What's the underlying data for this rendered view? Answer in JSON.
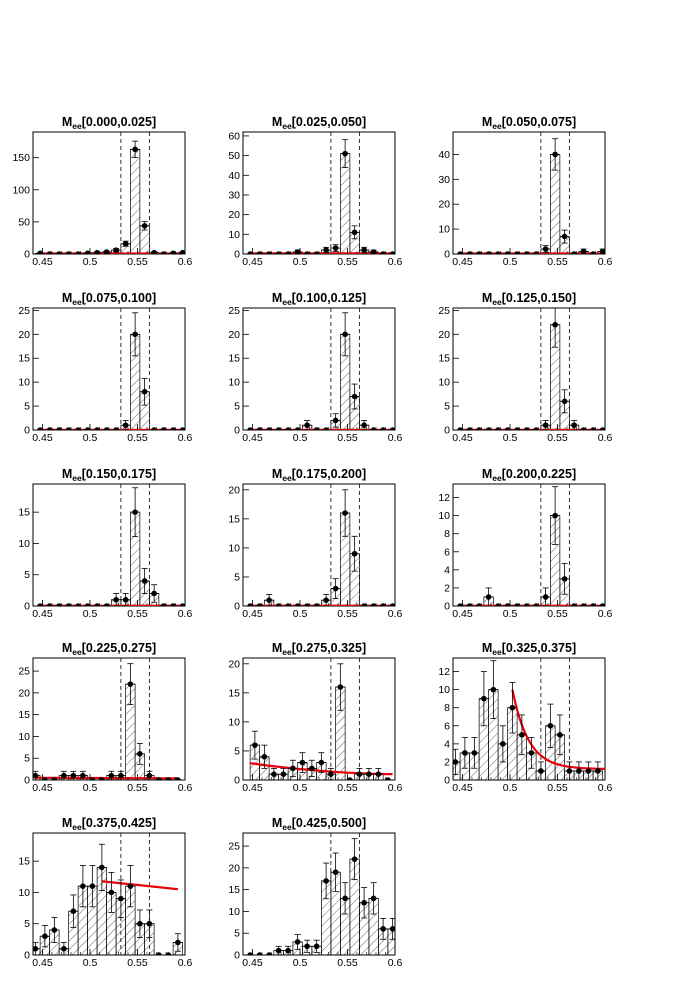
{
  "figure": {
    "x_ticks": [
      "0.45",
      "0.5",
      "0.55",
      "0.6"
    ],
    "window": [
      0.5325,
      0.5625
    ],
    "colors": {
      "fit": "#e8000b",
      "marker": "#000000",
      "hatch": "#000000"
    }
  },
  "chart_data": [
    {
      "type": "bar",
      "title": "M",
      "title_sub": "ee",
      "title_range": "[0.000,0.025]",
      "xlim": [
        0.44,
        0.6
      ],
      "ylim": [
        0,
        190
      ],
      "y_ticks": [
        "0",
        "50",
        "100",
        "150"
      ],
      "x": [
        0.4475,
        0.4575,
        0.4675,
        0.4775,
        0.4875,
        0.4975,
        0.5075,
        0.5175,
        0.5275,
        0.5375,
        0.5475,
        0.5575,
        0.5675,
        0.5775,
        0.5875,
        0.5975
      ],
      "values": [
        1,
        0,
        0,
        0,
        0,
        1,
        2,
        3,
        6,
        16,
        163,
        44,
        2,
        0,
        1,
        2
      ],
      "errors": [
        1,
        0,
        0,
        0,
        0,
        1,
        1.4,
        1.7,
        2.4,
        4,
        12.8,
        6.6,
        1.4,
        0,
        1,
        1.4
      ],
      "fit": {
        "kind": "poly",
        "coef": [
          0.8,
          0,
          0
        ],
        "from": 0.4475,
        "to": 0.5975
      }
    },
    {
      "type": "bar",
      "title": "M",
      "title_sub": "ee",
      "title_range": "[0.025,0.050]",
      "xlim": [
        0.44,
        0.6
      ],
      "ylim": [
        0,
        62
      ],
      "y_ticks": [
        "0",
        "10",
        "20",
        "30",
        "40",
        "50",
        "60"
      ],
      "x": [
        0.4475,
        0.4575,
        0.4675,
        0.4775,
        0.4875,
        0.4975,
        0.5075,
        0.5175,
        0.5275,
        0.5375,
        0.5475,
        0.5575,
        0.5675,
        0.5775,
        0.5875,
        0.5975
      ],
      "values": [
        0,
        0,
        0,
        0,
        0,
        1,
        0,
        0,
        2,
        3,
        51,
        11,
        2,
        1,
        0,
        0
      ],
      "errors": [
        0,
        0,
        0,
        0,
        0,
        1,
        0,
        0,
        1.4,
        1.7,
        7.1,
        3.3,
        1.4,
        1,
        0,
        0
      ],
      "fit": {
        "kind": "poly",
        "coef": [
          0.3,
          0,
          0
        ],
        "from": 0.4475,
        "to": 0.5975
      }
    },
    {
      "type": "bar",
      "title": "M",
      "title_sub": "ee",
      "title_range": "[0.050,0.075]",
      "xlim": [
        0.44,
        0.6
      ],
      "ylim": [
        0,
        49
      ],
      "y_ticks": [
        "0",
        "10",
        "20",
        "30",
        "40"
      ],
      "x": [
        0.4475,
        0.4575,
        0.4675,
        0.4775,
        0.4875,
        0.4975,
        0.5075,
        0.5175,
        0.5275,
        0.5375,
        0.5475,
        0.5575,
        0.5675,
        0.5775,
        0.5875,
        0.5975
      ],
      "values": [
        0,
        0,
        0,
        0,
        0,
        0,
        0,
        0,
        0,
        2,
        40,
        7,
        0,
        1,
        0,
        1
      ],
      "errors": [
        0,
        0,
        0,
        0,
        0,
        0,
        0,
        0,
        0,
        1.4,
        6.3,
        2.6,
        0,
        1,
        0,
        1
      ],
      "fit": {
        "kind": "poly",
        "coef": [
          0.2,
          0,
          0
        ],
        "from": 0.4475,
        "to": 0.5975
      }
    },
    {
      "type": "bar",
      "title": "M",
      "title_sub": "ee",
      "title_range": "[0.075,0.100]",
      "xlim": [
        0.44,
        0.6
      ],
      "ylim": [
        0,
        25.5
      ],
      "y_ticks": [
        "0",
        "5",
        "10",
        "15",
        "20",
        "25"
      ],
      "x": [
        0.4475,
        0.4575,
        0.4675,
        0.4775,
        0.4875,
        0.4975,
        0.5075,
        0.5175,
        0.5275,
        0.5375,
        0.5475,
        0.5575,
        0.5675,
        0.5775,
        0.5875,
        0.5975
      ],
      "values": [
        0,
        0,
        0,
        0,
        0,
        0,
        0,
        0,
        0,
        1,
        20,
        8,
        0,
        0,
        0,
        0
      ],
      "errors": [
        0,
        0,
        0,
        0,
        0,
        0,
        0,
        0,
        0,
        1,
        4.5,
        2.8,
        0,
        0,
        0,
        0
      ],
      "fit": {
        "kind": "poly",
        "coef": [
          0.05,
          0,
          0
        ],
        "from": 0.4475,
        "to": 0.5975
      }
    },
    {
      "type": "bar",
      "title": "M",
      "title_sub": "ee",
      "title_range": "[0.100,0.125]",
      "xlim": [
        0.44,
        0.6
      ],
      "ylim": [
        0,
        25.5
      ],
      "y_ticks": [
        "0",
        "5",
        "10",
        "15",
        "20",
        "25"
      ],
      "x": [
        0.4475,
        0.4575,
        0.4675,
        0.4775,
        0.4875,
        0.4975,
        0.5075,
        0.5175,
        0.5275,
        0.5375,
        0.5475,
        0.5575,
        0.5675,
        0.5775,
        0.5875,
        0.5975
      ],
      "values": [
        0,
        0,
        0,
        0,
        0,
        0,
        1,
        0,
        0,
        2,
        20,
        7,
        1,
        0,
        0,
        0
      ],
      "errors": [
        0,
        0,
        0,
        0,
        0,
        0,
        1,
        0,
        0,
        1.4,
        4.5,
        2.6,
        1,
        0,
        0,
        0
      ],
      "fit": {
        "kind": "poly",
        "coef": [
          0.05,
          0,
          0
        ],
        "from": 0.4475,
        "to": 0.5975
      }
    },
    {
      "type": "bar",
      "title": "M",
      "title_sub": "ee",
      "title_range": "[0.125,0.150]",
      "xlim": [
        0.44,
        0.6
      ],
      "ylim": [
        0,
        25.5
      ],
      "y_ticks": [
        "0",
        "5",
        "10",
        "15",
        "20",
        "25"
      ],
      "x": [
        0.4475,
        0.4575,
        0.4675,
        0.4775,
        0.4875,
        0.4975,
        0.5075,
        0.5175,
        0.5275,
        0.5375,
        0.5475,
        0.5575,
        0.5675,
        0.5775,
        0.5875,
        0.5975
      ],
      "values": [
        0,
        0,
        0,
        0,
        0,
        0,
        0,
        0,
        0,
        1,
        22,
        6,
        1,
        0,
        0,
        0
      ],
      "errors": [
        0,
        0,
        0,
        0,
        0,
        0,
        0,
        0,
        0,
        1,
        4.7,
        2.4,
        1,
        0,
        0,
        0
      ],
      "fit": {
        "kind": "poly",
        "coef": [
          0.05,
          0,
          0
        ],
        "from": 0.4475,
        "to": 0.5975
      }
    },
    {
      "type": "bar",
      "title": "M",
      "title_sub": "ee",
      "title_range": "[0.150,0.175]",
      "xlim": [
        0.44,
        0.6
      ],
      "ylim": [
        0,
        19.5
      ],
      "y_ticks": [
        "0",
        "5",
        "10",
        "15"
      ],
      "x": [
        0.4475,
        0.4575,
        0.4675,
        0.4775,
        0.4875,
        0.4975,
        0.5075,
        0.5175,
        0.5275,
        0.5375,
        0.5475,
        0.5575,
        0.5675,
        0.5775,
        0.5875,
        0.5975
      ],
      "values": [
        0,
        0,
        0,
        0,
        0,
        0,
        0,
        0,
        1,
        1,
        15,
        4,
        2,
        0,
        0,
        0
      ],
      "errors": [
        0,
        0,
        0,
        0,
        0,
        0,
        0,
        0,
        1,
        1,
        3.9,
        2,
        1.4,
        0,
        0,
        0
      ],
      "fit": {
        "kind": "poly",
        "coef": [
          0.05,
          0,
          0
        ],
        "from": 0.4475,
        "to": 0.5975
      }
    },
    {
      "type": "bar",
      "title": "M",
      "title_sub": "ee",
      "title_range": "[0.175,0.200]",
      "xlim": [
        0.44,
        0.6
      ],
      "ylim": [
        0,
        21
      ],
      "y_ticks": [
        "0",
        "5",
        "10",
        "15",
        "20"
      ],
      "x": [
        0.4475,
        0.4575,
        0.4675,
        0.4775,
        0.4875,
        0.4975,
        0.5075,
        0.5175,
        0.5275,
        0.5375,
        0.5475,
        0.5575,
        0.5675,
        0.5775,
        0.5875,
        0.5975
      ],
      "values": [
        0,
        0,
        1,
        0,
        0,
        0,
        0,
        0,
        1,
        3,
        16,
        9,
        0,
        0,
        0,
        0
      ],
      "errors": [
        0,
        0,
        1,
        0,
        0,
        0,
        0,
        0,
        1,
        1.7,
        4,
        3,
        0,
        0,
        0,
        0
      ],
      "fit": {
        "kind": "poly",
        "coef": [
          0.05,
          0,
          0
        ],
        "from": 0.4475,
        "to": 0.5975
      }
    },
    {
      "type": "bar",
      "title": "M",
      "title_sub": "ee",
      "title_range": "[0.200,0.225]",
      "xlim": [
        0.44,
        0.6
      ],
      "ylim": [
        0,
        13.5
      ],
      "y_ticks": [
        "0",
        "2",
        "4",
        "6",
        "8",
        "10",
        "12"
      ],
      "x": [
        0.4475,
        0.4575,
        0.4675,
        0.4775,
        0.4875,
        0.4975,
        0.5075,
        0.5175,
        0.5275,
        0.5375,
        0.5475,
        0.5575,
        0.5675,
        0.5775,
        0.5875,
        0.5975
      ],
      "values": [
        0,
        0,
        0,
        1,
        0,
        0,
        0,
        0,
        0,
        1,
        10,
        3,
        0,
        0,
        0,
        0
      ],
      "errors": [
        0,
        0,
        0,
        1,
        0,
        0,
        0,
        0,
        0,
        1,
        3.2,
        1.7,
        0,
        0,
        0,
        0
      ],
      "fit": {
        "kind": "poly",
        "coef": [
          0.03,
          0,
          0
        ],
        "from": 0.4475,
        "to": 0.5975
      }
    },
    {
      "type": "bar",
      "title": "M",
      "title_sub": "ee",
      "title_range": "[0.225,0.275]",
      "xlim": [
        0.44,
        0.6
      ],
      "ylim": [
        0,
        28
      ],
      "y_ticks": [
        "0",
        "5",
        "10",
        "15",
        "20",
        "25"
      ],
      "x": [
        0.4425,
        0.4525,
        0.4625,
        0.4725,
        0.4825,
        0.4925,
        0.5025,
        0.5125,
        0.5225,
        0.5325,
        0.5425,
        0.5525,
        0.5625,
        0.5725,
        0.5825,
        0.5925
      ],
      "values": [
        1,
        0,
        0,
        1,
        1,
        1,
        0,
        0,
        1,
        1,
        22,
        6,
        1,
        0,
        0,
        0
      ],
      "errors": [
        1,
        0,
        0,
        1,
        1,
        1,
        0,
        0,
        1,
        1,
        4.7,
        2.4,
        1,
        0,
        0,
        0
      ],
      "fit": {
        "kind": "poly",
        "coef": [
          0.5,
          -0.008,
          0
        ],
        "from": 0.4425,
        "to": 0.5925
      }
    },
    {
      "type": "bar",
      "title": "M",
      "title_sub": "ee",
      "title_range": "[0.275,0.325]",
      "xlim": [
        0.44,
        0.6
      ],
      "ylim": [
        0,
        21
      ],
      "y_ticks": [
        "0",
        "5",
        "10",
        "15",
        "20"
      ],
      "x": [
        0.4525,
        0.4625,
        0.4725,
        0.4825,
        0.4925,
        0.5025,
        0.5125,
        0.5225,
        0.5325,
        0.5425,
        0.5525,
        0.5625,
        0.5725,
        0.5825,
        0.5925
      ],
      "values": [
        6,
        4,
        1,
        1,
        2,
        3,
        2,
        3,
        1,
        16,
        0,
        1,
        1,
        1,
        0
      ],
      "errors": [
        2.4,
        2,
        1,
        1,
        1.4,
        1.7,
        1.4,
        1.7,
        1,
        4,
        0,
        1,
        1,
        1,
        0
      ],
      "fit": {
        "kind": "poly",
        "coef": [
          2.9,
          -0.23,
          0.0069
        ],
        "from": 0.4475,
        "to": 0.5975
      }
    },
    {
      "type": "bar",
      "title": "M",
      "title_sub": "ee",
      "title_range": "[0.325,0.375]",
      "xlim": [
        0.44,
        0.6
      ],
      "ylim": [
        0,
        13.5
      ],
      "y_ticks": [
        "0",
        "2",
        "4",
        "6",
        "8",
        "10",
        "12"
      ],
      "x": [
        0.4425,
        0.4525,
        0.4625,
        0.4725,
        0.4825,
        0.4925,
        0.5025,
        0.5125,
        0.5225,
        0.5325,
        0.5425,
        0.5525,
        0.5625,
        0.5725,
        0.5825,
        0.5925
      ],
      "values": [
        2,
        3,
        3,
        9,
        10,
        4,
        8,
        5,
        3,
        1,
        6,
        5,
        1,
        1,
        1,
        1
      ],
      "errors": [
        1.4,
        1.7,
        1.7,
        3,
        3.2,
        2,
        2.8,
        2.2,
        1.7,
        1,
        2.4,
        2.2,
        1,
        1,
        1,
        1
      ],
      "fit": {
        "kind": "exp",
        "base": 1.2,
        "amp": 8.8,
        "decay": 0.017,
        "from": 0.5025,
        "to": 0.6
      }
    },
    {
      "type": "bar",
      "title": "M",
      "title_sub": "ee",
      "title_range": "[0.375,0.425]",
      "xlim": [
        0.44,
        0.6
      ],
      "ylim": [
        0,
        19.5
      ],
      "y_ticks": [
        "0",
        "5",
        "10",
        "15"
      ],
      "x": [
        0.4425,
        0.4525,
        0.4625,
        0.4725,
        0.4825,
        0.4925,
        0.5025,
        0.5125,
        0.5225,
        0.5325,
        0.5425,
        0.5525,
        0.5625,
        0.5725,
        0.5825,
        0.5925
      ],
      "values": [
        1,
        3,
        4,
        1,
        7,
        11,
        11,
        14,
        10,
        9,
        11,
        5,
        5,
        0,
        0,
        2
      ],
      "errors": [
        1,
        1.7,
        2,
        1,
        2.6,
        3.3,
        3.3,
        3.7,
        3.2,
        3,
        3.3,
        2.2,
        2.2,
        0,
        0,
        1.4
      ],
      "fit": {
        "kind": "poly",
        "coef": [
          12.8,
          -0.157,
          0
        ],
        "from": 0.5125,
        "to": 0.5925
      }
    },
    {
      "type": "bar",
      "title": "M",
      "title_sub": "ee",
      "title_range": "[0.425,0.500]",
      "xlim": [
        0.44,
        0.6
      ],
      "ylim": [
        0,
        28
      ],
      "y_ticks": [
        "0",
        "5",
        "10",
        "15",
        "20",
        "25"
      ],
      "x": [
        0.4475,
        0.4575,
        0.4675,
        0.4775,
        0.4875,
        0.4975,
        0.5075,
        0.5175,
        0.5275,
        0.5375,
        0.5475,
        0.5575,
        0.5675,
        0.5775,
        0.5875,
        0.5975
      ],
      "values": [
        0,
        0,
        0,
        1,
        1,
        3,
        2,
        2,
        17,
        19,
        13,
        22,
        12,
        13,
        6,
        6
      ],
      "errors": [
        0,
        0,
        0,
        1,
        1,
        1.7,
        1.4,
        1.4,
        4.1,
        4.4,
        3.6,
        4.7,
        3.5,
        3.6,
        2.4,
        2.4
      ]
    }
  ]
}
